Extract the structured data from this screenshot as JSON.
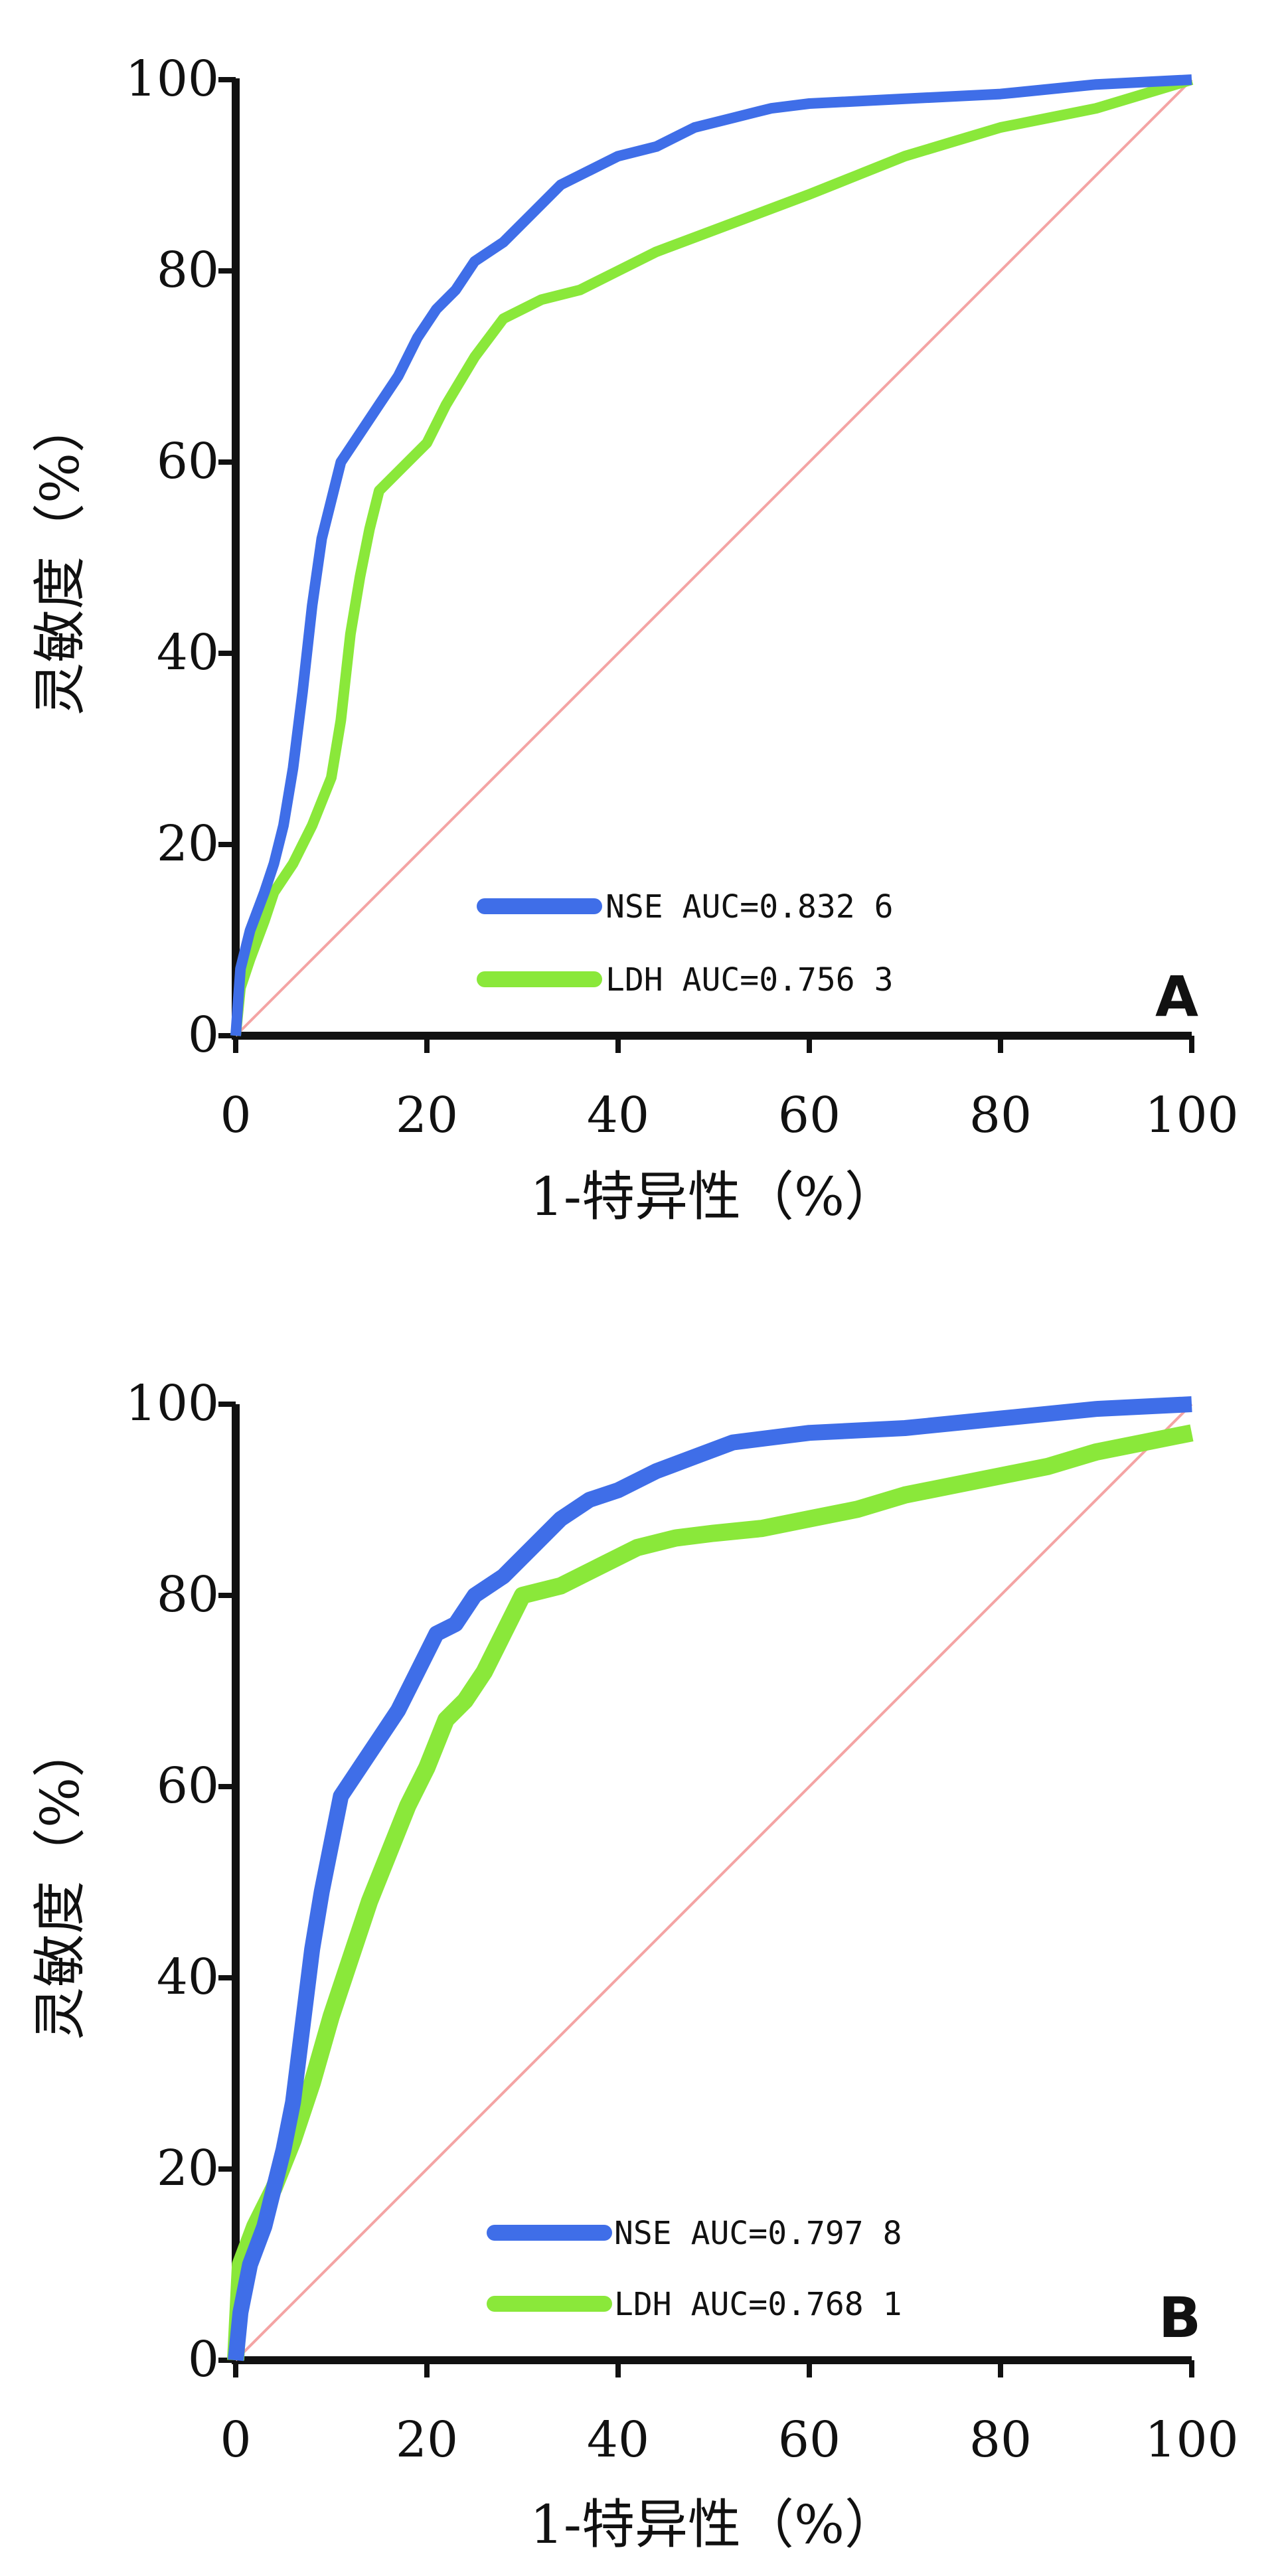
{
  "chart_data": [
    {
      "type": "line",
      "panel_label": "A",
      "xlabel": "1-特异性（%）",
      "ylabel": "灵敏度（%）",
      "xlim": [
        0,
        100
      ],
      "ylim": [
        0,
        100
      ],
      "x_ticks": [
        "0",
        "20",
        "40",
        "60",
        "80",
        "100"
      ],
      "y_ticks": [
        "0",
        "20",
        "40",
        "60",
        "80",
        "100"
      ],
      "grid": false,
      "legend_position": "bottom-right",
      "reference_line": {
        "from": [
          0,
          0
        ],
        "to": [
          100,
          100
        ],
        "color": "#f4a4a4"
      },
      "series": [
        {
          "name": "NSE AUC=0.832 6",
          "color": "#3f6ee8",
          "points": [
            [
              0,
              0
            ],
            [
              0.5,
              7
            ],
            [
              1.5,
              11
            ],
            [
              3,
              15
            ],
            [
              4,
              18
            ],
            [
              5,
              22
            ],
            [
              6,
              28
            ],
            [
              7,
              36
            ],
            [
              8,
              45
            ],
            [
              9,
              52
            ],
            [
              10,
              56
            ],
            [
              11,
              60
            ],
            [
              13,
              63
            ],
            [
              15,
              66
            ],
            [
              17,
              69
            ],
            [
              19,
              73
            ],
            [
              21,
              76
            ],
            [
              23,
              78
            ],
            [
              25,
              81
            ],
            [
              28,
              83
            ],
            [
              31,
              86
            ],
            [
              34,
              89
            ],
            [
              37,
              90.5
            ],
            [
              40,
              92
            ],
            [
              44,
              93
            ],
            [
              48,
              95
            ],
            [
              52,
              96
            ],
            [
              56,
              97
            ],
            [
              60,
              97.5
            ],
            [
              70,
              98
            ],
            [
              80,
              98.5
            ],
            [
              90,
              99.5
            ],
            [
              100,
              100
            ]
          ]
        },
        {
          "name": "LDH AUC=0.756 3",
          "color": "#8ae83a",
          "points": [
            [
              0,
              0
            ],
            [
              0.5,
              5
            ],
            [
              1.5,
              8
            ],
            [
              3,
              12
            ],
            [
              4,
              15
            ],
            [
              6,
              18
            ],
            [
              8,
              22
            ],
            [
              10,
              27
            ],
            [
              11,
              33
            ],
            [
              12,
              42
            ],
            [
              13,
              48
            ],
            [
              14,
              53
            ],
            [
              15,
              57
            ],
            [
              17,
              59
            ],
            [
              20,
              62
            ],
            [
              22,
              66
            ],
            [
              25,
              71
            ],
            [
              28,
              75
            ],
            [
              32,
              77
            ],
            [
              36,
              78
            ],
            [
              40,
              80
            ],
            [
              44,
              82
            ],
            [
              48,
              83.5
            ],
            [
              52,
              85
            ],
            [
              56,
              86.5
            ],
            [
              60,
              88
            ],
            [
              65,
              90
            ],
            [
              70,
              92
            ],
            [
              75,
              93.5
            ],
            [
              80,
              95
            ],
            [
              85,
              96
            ],
            [
              90,
              97
            ],
            [
              95,
              98.5
            ],
            [
              100,
              100
            ]
          ]
        }
      ]
    },
    {
      "type": "line",
      "panel_label": "B",
      "xlabel": "1-特异性（%）",
      "ylabel": "灵敏度（%）",
      "xlim": [
        0,
        100
      ],
      "ylim": [
        0,
        100
      ],
      "x_ticks": [
        "0",
        "20",
        "40",
        "60",
        "80",
        "100"
      ],
      "y_ticks": [
        "0",
        "20",
        "40",
        "60",
        "80",
        "100"
      ],
      "grid": false,
      "legend_position": "bottom-right",
      "reference_line": {
        "from": [
          0,
          0
        ],
        "to": [
          100,
          100
        ],
        "color": "#f4a4a4"
      },
      "series": [
        {
          "name": "NSE AUC=0.797 8",
          "color": "#3f6ee8",
          "points": [
            [
              0,
              0
            ],
            [
              0.5,
              5
            ],
            [
              1.5,
              10
            ],
            [
              3,
              14
            ],
            [
              4,
              18
            ],
            [
              5,
              22
            ],
            [
              6,
              27
            ],
            [
              7,
              35
            ],
            [
              8,
              43
            ],
            [
              9,
              49
            ],
            [
              10,
              54
            ],
            [
              11,
              59
            ],
            [
              13,
              62
            ],
            [
              15,
              65
            ],
            [
              17,
              68
            ],
            [
              19,
              72
            ],
            [
              21,
              76
            ],
            [
              23,
              77
            ],
            [
              25,
              80
            ],
            [
              28,
              82
            ],
            [
              31,
              85
            ],
            [
              34,
              88
            ],
            [
              37,
              90
            ],
            [
              40,
              91
            ],
            [
              44,
              93
            ],
            [
              48,
              94.5
            ],
            [
              52,
              96
            ],
            [
              56,
              96.5
            ],
            [
              60,
              97
            ],
            [
              70,
              97.5
            ],
            [
              80,
              98.5
            ],
            [
              90,
              99.5
            ],
            [
              100,
              100
            ]
          ]
        },
        {
          "name": "LDH AUC=0.768 1",
          "color": "#8ae83a",
          "points": [
            [
              0,
              0
            ],
            [
              0.5,
              10
            ],
            [
              2,
              14
            ],
            [
              4,
              18
            ],
            [
              6,
              23
            ],
            [
              8,
              29
            ],
            [
              10,
              36
            ],
            [
              12,
              42
            ],
            [
              14,
              48
            ],
            [
              16,
              53
            ],
            [
              18,
              58
            ],
            [
              20,
              62
            ],
            [
              22,
              67
            ],
            [
              24,
              69
            ],
            [
              26,
              72
            ],
            [
              28,
              76
            ],
            [
              30,
              80
            ],
            [
              34,
              81
            ],
            [
              38,
              83
            ],
            [
              42,
              85
            ],
            [
              46,
              86
            ],
            [
              50,
              86.5
            ],
            [
              55,
              87
            ],
            [
              60,
              88
            ],
            [
              65,
              89
            ],
            [
              70,
              90.5
            ],
            [
              75,
              91.5
            ],
            [
              80,
              92.5
            ],
            [
              85,
              93.5
            ],
            [
              90,
              95
            ],
            [
              95,
              96
            ],
            [
              100,
              97
            ]
          ]
        }
      ]
    }
  ]
}
